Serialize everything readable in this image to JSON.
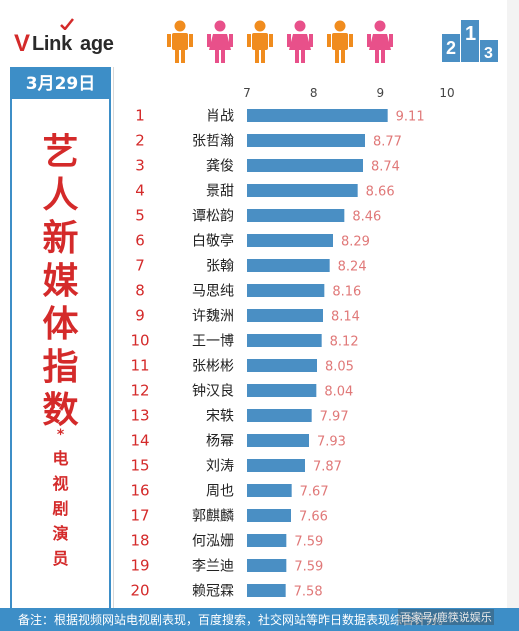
{
  "brand": {
    "logo_v": "V",
    "logo_rest": "Link",
    "logo_suffix": "age"
  },
  "colors": {
    "accent_blue": "#3d8ec7",
    "bar_blue": "#4a8fc4",
    "title_red": "#d42a2a",
    "value_pink": "#e07878",
    "person_orange": "#f08c1e",
    "person_pink": "#e8508a"
  },
  "icons": {
    "people": [
      "person-orange-icon",
      "person-pink-icon",
      "person-orange-icon",
      "person-pink-icon",
      "person-orange-icon",
      "person-pink-icon"
    ],
    "podium": "podium-icon"
  },
  "header": {
    "date": "3月29日"
  },
  "title": {
    "chars": [
      "艺",
      "人",
      "新",
      "媒",
      "体",
      "指",
      "数"
    ],
    "star": "*",
    "subtitle_chars": [
      "电",
      "视",
      "剧",
      "演",
      "员"
    ]
  },
  "footer": {
    "note": "备注：根据视频网站电视剧表现，百度搜索，社交网站等昨日数据表现综合计分。",
    "watermark": "百家号/鹿筷说娱乐"
  },
  "podium_labels": [
    "2",
    "1",
    "3"
  ],
  "chart_data": {
    "type": "bar",
    "orientation": "horizontal",
    "title": "",
    "xlabel": "",
    "ylabel": "",
    "xlim": [
      7,
      10
    ],
    "x_ticks": [
      7,
      8,
      9,
      10
    ],
    "ranks": [
      1,
      2,
      3,
      4,
      5,
      6,
      7,
      8,
      9,
      10,
      11,
      12,
      13,
      14,
      15,
      16,
      17,
      18,
      19,
      20
    ],
    "categories": [
      "肖战",
      "张哲瀚",
      "龚俊",
      "景甜",
      "谭松韵",
      "白敬亭",
      "张翰",
      "马思纯",
      "许魏洲",
      "王一博",
      "张彬彬",
      "钟汉良",
      "宋轶",
      "杨幂",
      "刘涛",
      "周也",
      "郭麒麟",
      "何泓姗",
      "李兰迪",
      "赖冠霖"
    ],
    "values": [
      9.11,
      8.77,
      8.74,
      8.66,
      8.46,
      8.29,
      8.24,
      8.16,
      8.14,
      8.12,
      8.05,
      8.04,
      7.97,
      7.93,
      7.87,
      7.67,
      7.66,
      7.59,
      7.59,
      7.58
    ],
    "grid": false,
    "legend": "none"
  }
}
